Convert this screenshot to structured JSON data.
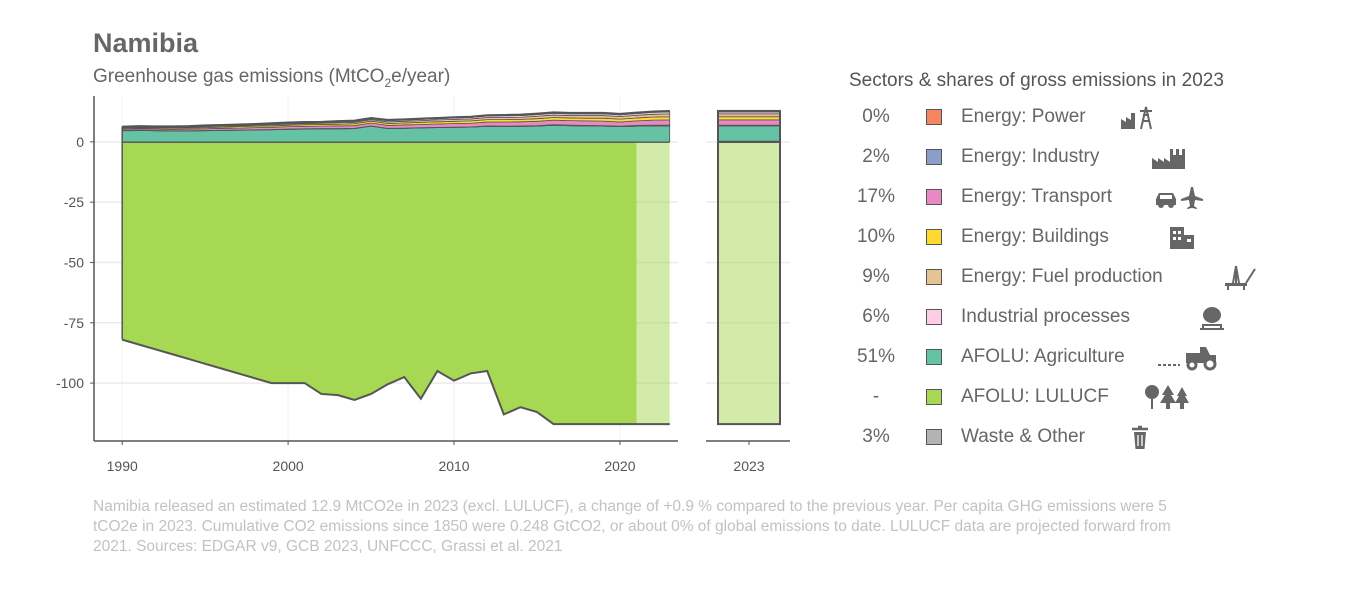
{
  "title": "Namibia",
  "subtitle": {
    "prefix": "Greenhouse gas emissions (MtCO",
    "sub": "2",
    "suffix": "e/year)"
  },
  "legend": {
    "title": "Sectors & shares of gross emissions in 2023",
    "items": [
      {
        "share": "0%",
        "label": "Energy: Power",
        "color": "#f4875f",
        "icon": "power-plant-icon"
      },
      {
        "share": "2%",
        "label": "Energy: Industry",
        "color": "#8c9dcc",
        "icon": "factory-icon"
      },
      {
        "share": "17%",
        "label": "Energy: Transport",
        "color": "#e78ac3",
        "icon": "car-plane-icon"
      },
      {
        "share": "10%",
        "label": "Energy: Buildings",
        "color": "#ffd92f",
        "icon": "buildings-icon"
      },
      {
        "share": "9%",
        "label": "Energy: Fuel production",
        "color": "#e5c494",
        "icon": "oil-rig-icon"
      },
      {
        "share": "6%",
        "label": "Industrial processes",
        "color": "#fccde5",
        "icon": "cement-mixer-icon"
      },
      {
        "share": "51%",
        "label": "AFOLU: Agriculture",
        "color": "#66c2a5",
        "icon": "tractor-icon"
      },
      {
        "share": "-",
        "label": "AFOLU: LULUCF",
        "color": "#a6d854",
        "icon": "trees-icon"
      },
      {
        "share": "3%",
        "label": "Waste & Other",
        "color": "#b3b3b3",
        "icon": "trash-icon"
      }
    ]
  },
  "caption": "Namibia released an estimated 12.9 MtCO2e in 2023 (excl. LULUCF), a change of +0.9 % compared to the previous year. Per capita GHG emissions were 5 tCO2e in 2023. Cumulative CO2 emissions since 1850 were 0.248 GtCO2, or about 0% of global emissions to date. LULUCF data are projected forward from 2021. Sources: EDGAR v9, GCB 2023, UNFCCC, Grassi et al. 2021",
  "chart_data": {
    "type": "area",
    "title": "Namibia",
    "ylabel": "Greenhouse gas emissions (MtCO2e/year)",
    "xlim": [
      1988.3,
      2023.5
    ],
    "ylim": [
      -124,
      19
    ],
    "x_ticks": [
      1990,
      2000,
      2010,
      2020
    ],
    "y_ticks": [
      0,
      -25,
      -50,
      -75,
      -100
    ],
    "y_tick_labels": [
      "0",
      "-25",
      "-50",
      "-75",
      "-100"
    ],
    "lulucf_projected_from": 2021,
    "x": [
      1990,
      1991,
      1992,
      1993,
      1994,
      1995,
      1996,
      1997,
      1998,
      1999,
      2000,
      2001,
      2002,
      2003,
      2004,
      2005,
      2006,
      2007,
      2008,
      2009,
      2010,
      2011,
      2012,
      2013,
      2014,
      2015,
      2016,
      2017,
      2018,
      2019,
      2020,
      2021,
      2022,
      2023
    ],
    "series": [
      {
        "name": "AFOLU: LULUCF",
        "values": [
          -82,
          -84,
          -86,
          -88,
          -90,
          -92,
          -94,
          -96,
          -98,
          -100,
          -100,
          -100,
          -104.5,
          -105,
          -107,
          -104.5,
          -100.5,
          -97.5,
          -106.5,
          -95,
          -99,
          -96,
          -95,
          -113,
          -110,
          -112,
          -117,
          -117,
          -117,
          -117,
          -117,
          -117,
          -117,
          -117
        ]
      },
      {
        "name": "AFOLU: Agriculture",
        "values": [
          4.6,
          4.7,
          4.6,
          4.5,
          4.5,
          4.6,
          4.7,
          4.8,
          4.9,
          5.0,
          5.2,
          5.3,
          5.4,
          5.4,
          5.5,
          6.5,
          5.5,
          5.6,
          5.8,
          5.9,
          6.0,
          6.1,
          6.4,
          6.3,
          6.4,
          6.5,
          6.9,
          6.7,
          6.6,
          6.5,
          6.3,
          6.5,
          6.6,
          6.6
        ]
      },
      {
        "name": "Energy: Power",
        "values": [
          0,
          0,
          0,
          0,
          0,
          0,
          0,
          0,
          0,
          0,
          0,
          0,
          0,
          0,
          0,
          0,
          0,
          0,
          0,
          0,
          0,
          0,
          0,
          0,
          0,
          0,
          0,
          0,
          0,
          0,
          0,
          0,
          0,
          0
        ]
      },
      {
        "name": "Energy: Industry",
        "values": [
          0.1,
          0.1,
          0.1,
          0.1,
          0.1,
          0.1,
          0.1,
          0.1,
          0.1,
          0.1,
          0.1,
          0.1,
          0.1,
          0.1,
          0.1,
          0.1,
          0.1,
          0.1,
          0.1,
          0.1,
          0.1,
          0.1,
          0.2,
          0.2,
          0.2,
          0.2,
          0.2,
          0.2,
          0.2,
          0.2,
          0.2,
          0.3,
          0.3,
          0.3
        ]
      },
      {
        "name": "Energy: Transport",
        "values": [
          0.5,
          0.6,
          0.6,
          0.6,
          0.7,
          0.7,
          0.8,
          0.8,
          0.9,
          0.9,
          1.0,
          1.0,
          1.0,
          1.1,
          1.1,
          1.2,
          1.2,
          1.3,
          1.3,
          1.4,
          1.5,
          1.5,
          1.6,
          1.7,
          1.7,
          1.8,
          1.9,
          1.9,
          1.9,
          1.9,
          1.7,
          1.9,
          2.1,
          2.2
        ]
      },
      {
        "name": "Energy: Buildings",
        "values": [
          0.4,
          0.4,
          0.4,
          0.5,
          0.5,
          0.5,
          0.5,
          0.6,
          0.6,
          0.6,
          0.6,
          0.7,
          0.7,
          0.7,
          0.8,
          0.8,
          0.8,
          0.8,
          0.9,
          0.9,
          0.9,
          1.0,
          1.0,
          1.0,
          1.0,
          1.1,
          1.1,
          1.1,
          1.1,
          1.2,
          1.2,
          1.2,
          1.3,
          1.3
        ]
      },
      {
        "name": "Energy: Fuel production",
        "values": [
          0.3,
          0.3,
          0.3,
          0.3,
          0.3,
          0.4,
          0.4,
          0.4,
          0.4,
          0.5,
          0.5,
          0.5,
          0.5,
          0.6,
          0.6,
          0.6,
          0.7,
          0.7,
          0.7,
          0.8,
          0.8,
          0.8,
          0.9,
          0.9,
          0.9,
          1.0,
          1.0,
          1.0,
          1.1,
          1.1,
          1.1,
          1.1,
          1.1,
          1.2
        ]
      },
      {
        "name": "Industrial processes",
        "values": [
          0.1,
          0.1,
          0.1,
          0.1,
          0.1,
          0.2,
          0.2,
          0.2,
          0.2,
          0.3,
          0.3,
          0.3,
          0.3,
          0.4,
          0.4,
          0.4,
          0.5,
          0.5,
          0.5,
          0.5,
          0.6,
          0.6,
          0.6,
          0.7,
          0.7,
          0.7,
          0.7,
          0.7,
          0.7,
          0.7,
          0.7,
          0.7,
          0.8,
          0.8
        ]
      },
      {
        "name": "Waste & Other",
        "values": [
          0.3,
          0.3,
          0.3,
          0.3,
          0.3,
          0.3,
          0.3,
          0.3,
          0.3,
          0.3,
          0.3,
          0.3,
          0.3,
          0.3,
          0.3,
          0.3,
          0.3,
          0.3,
          0.3,
          0.3,
          0.3,
          0.3,
          0.3,
          0.3,
          0.4,
          0.4,
          0.4,
          0.4,
          0.4,
          0.4,
          0.4,
          0.4,
          0.4,
          0.4
        ]
      }
    ],
    "year_2023_panel": {
      "x_tick": "2023",
      "stack": [
        {
          "name": "AFOLU: LULUCF",
          "value": -117
        },
        {
          "name": "AFOLU: Agriculture",
          "value": 6.6
        },
        {
          "name": "Energy: Power",
          "value": 0
        },
        {
          "name": "Energy: Industry",
          "value": 0.3
        },
        {
          "name": "Energy: Transport",
          "value": 2.2
        },
        {
          "name": "Energy: Buildings",
          "value": 1.3
        },
        {
          "name": "Energy: Fuel production",
          "value": 1.2
        },
        {
          "name": "Industrial processes",
          "value": 0.8
        },
        {
          "name": "Waste & Other",
          "value": 0.4
        }
      ]
    }
  }
}
